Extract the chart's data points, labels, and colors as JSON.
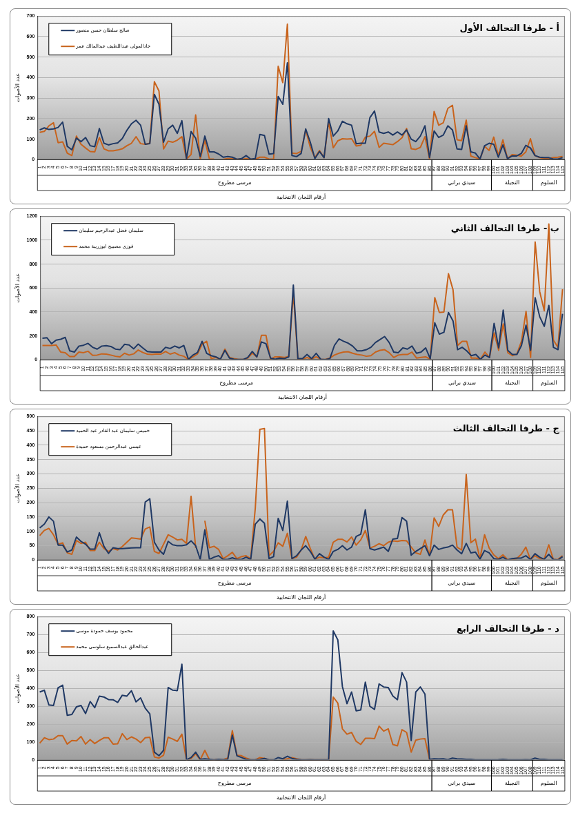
{
  "chart_data": [
    {
      "type": "line",
      "title": "أ - طرفا التحالف الأول",
      "xlabel": "أرقام اللجان الانتخابية",
      "ylabel": "عدد الأصوات",
      "legend": "top left",
      "grid": "y",
      "ylim": [
        0,
        700
      ],
      "yticks": [
        0,
        100,
        200,
        300,
        400,
        500,
        600,
        700
      ],
      "categories": [
        "1",
        "2",
        "3",
        "4",
        "5",
        "6",
        "7",
        "8",
        "9",
        "10",
        "11",
        "12",
        "13",
        "14",
        "15",
        "16",
        "17",
        "18",
        "19",
        "20",
        "21",
        "22",
        "23",
        "24",
        "25",
        "26",
        "27",
        "28",
        "29",
        "30",
        "31",
        "32",
        "33",
        "34",
        "35",
        "36",
        "37",
        "38",
        "39",
        "40",
        "41",
        "42",
        "43",
        "44",
        "45",
        "46",
        "47",
        "48",
        "49",
        "50",
        "51",
        "52",
        "53",
        "54",
        "55",
        "56",
        "57",
        "58",
        "59",
        "60",
        "61",
        "62",
        "63",
        "64",
        "65",
        "66",
        "67",
        "68",
        "69",
        "70",
        "71",
        "72",
        "73",
        "74",
        "75",
        "76",
        "77",
        "78",
        "79",
        "80",
        "81",
        "82",
        "83",
        "84",
        "85",
        "86",
        "87",
        "88",
        "89",
        "90",
        "91",
        "92",
        "93",
        "94",
        "95",
        "96",
        "97",
        "98",
        "99",
        "100",
        "101",
        "102",
        "103",
        "104",
        "105",
        "106",
        "107",
        "108",
        "109",
        "110",
        "111",
        "112",
        "113",
        "114",
        "115"
      ],
      "annotations": [
        "مرسى مطروح",
        "سيدي براني",
        "النجيلة",
        "السلوم"
      ],
      "series": [
        {
          "name": "صالح سلطان حسن منصور",
          "color": "#1f3864",
          "values": [
            145,
            155,
            147,
            150,
            157,
            183,
            65,
            48,
            105,
            88,
            108,
            68,
            63,
            152,
            80,
            72,
            78,
            82,
            103,
            143,
            175,
            192,
            168,
            75,
            78,
            318,
            270,
            85,
            150,
            168,
            128,
            190,
            5,
            137,
            105,
            15,
            115,
            38,
            38,
            28,
            12,
            15,
            12,
            2,
            5,
            20,
            3,
            5,
            123,
            118,
            27,
            30,
            308,
            270,
            472,
            20,
            15,
            30,
            150,
            85,
            5,
            40,
            10,
            200,
            115,
            140,
            187,
            175,
            168,
            78,
            80,
            80,
            205,
            237,
            135,
            128,
            135,
            120,
            135,
            120,
            145,
            100,
            88,
            115,
            165,
            10,
            140,
            108,
            120,
            165,
            145,
            52,
            50,
            165,
            38,
            32,
            3,
            68,
            80,
            75,
            12,
            72,
            5,
            18,
            18,
            30,
            70,
            57,
            20,
            12,
            10,
            10,
            3,
            3,
            10
          ]
        },
        {
          "name": "جادالمولى عبداللطيف عبدالمالك عمر",
          "color": "#c8631c",
          "values": [
            133,
            138,
            165,
            180,
            83,
            87,
            32,
            20,
            115,
            75,
            57,
            40,
            38,
            108,
            53,
            43,
            43,
            47,
            53,
            68,
            80,
            112,
            78,
            75,
            80,
            380,
            335,
            52,
            90,
            85,
            95,
            112,
            3,
            25,
            218,
            3,
            95,
            3,
            3,
            null,
            2,
            5,
            5,
            2,
            2,
            5,
            3,
            2,
            12,
            12,
            3,
            3,
            455,
            375,
            660,
            32,
            30,
            40,
            145,
            60,
            10,
            45,
            10,
            185,
            58,
            92,
            102,
            100,
            102,
            67,
            70,
            110,
            115,
            138,
            60,
            80,
            77,
            73,
            88,
            107,
            152,
            53,
            50,
            60,
            112,
            3,
            235,
            168,
            180,
            250,
            265,
            97,
            93,
            193,
            18,
            10,
            3,
            65,
            45,
            110,
            20,
            97,
            5,
            25,
            22,
            17,
            38,
            102,
            20,
            10,
            5,
            5,
            10,
            12,
            15
          ]
        }
      ]
    },
    {
      "type": "line",
      "title": "ب - طرفا التحالف الثاني",
      "xlabel": "أرقام اللجان الانتخابية",
      "ylabel": "عدد الأصوات",
      "legend": "top left",
      "grid": "y",
      "ylim": [
        0,
        1200
      ],
      "yticks": [
        0,
        200,
        400,
        600,
        800,
        1000,
        1200
      ],
      "categories": [
        "1",
        "2",
        "3",
        "4",
        "5",
        "6",
        "7",
        "8",
        "9",
        "10",
        "11",
        "12",
        "13",
        "14",
        "15",
        "16",
        "17",
        "18",
        "19",
        "20",
        "21",
        "22",
        "23",
        "24",
        "25",
        "26",
        "27",
        "28",
        "29",
        "30",
        "31",
        "32",
        "33",
        "34",
        "35",
        "36",
        "37",
        "38",
        "39",
        "40",
        "41",
        "42",
        "43",
        "44",
        "45",
        "46",
        "47",
        "48",
        "49",
        "50",
        "51",
        "52",
        "53",
        "54",
        "55",
        "56",
        "57",
        "58",
        "59",
        "60",
        "61",
        "62",
        "63",
        "64",
        "65",
        "66",
        "67",
        "68",
        "69",
        "70",
        "71",
        "72",
        "73",
        "74",
        "75",
        "76",
        "77",
        "78",
        "79",
        "80",
        "81",
        "82",
        "83",
        "84",
        "85",
        "86",
        "87",
        "88",
        "89",
        "90",
        "91",
        "92",
        "93",
        "94",
        "95",
        "96",
        "97",
        "98",
        "99",
        "100",
        "101",
        "102",
        "103",
        "104",
        "105",
        "106",
        "107",
        "108",
        "109",
        "110",
        "111",
        "112",
        "113",
        "114",
        "115"
      ],
      "annotations": [
        "مرسى مطروح",
        "سيدي براني",
        "النجيلة",
        "السلوم"
      ],
      "series": [
        {
          "name": "سليمان فضل عبدالرحيم سليمان",
          "color": "#1f3864",
          "values": [
            180,
            185,
            135,
            165,
            172,
            188,
            75,
            65,
            115,
            122,
            138,
            105,
            90,
            115,
            118,
            112,
            90,
            85,
            130,
            125,
            92,
            132,
            100,
            70,
            65,
            65,
            65,
            105,
            95,
            115,
            100,
            120,
            5,
            40,
            62,
            155,
            55,
            35,
            25,
            5,
            80,
            15,
            5,
            3,
            3,
            20,
            70,
            25,
            150,
            135,
            15,
            5,
            15,
            10,
            25,
            625,
            10,
            10,
            45,
            10,
            55,
            5,
            2,
            10,
            120,
            175,
            155,
            140,
            115,
            75,
            75,
            85,
            105,
            145,
            170,
            195,
            145,
            65,
            60,
            100,
            90,
            115,
            55,
            65,
            100,
            10,
            310,
            215,
            230,
            395,
            325,
            85,
            105,
            75,
            35,
            45,
            5,
            40,
            20,
            305,
            100,
            415,
            80,
            45,
            45,
            120,
            290,
            80,
            520,
            360,
            280,
            455,
            105,
            85,
            385
          ]
        },
        {
          "name": "فوزى مصيبح ابوزريبة محمد",
          "color": "#c8631c",
          "values": [
            120,
            120,
            120,
            125,
            65,
            60,
            28,
            28,
            65,
            60,
            72,
            38,
            40,
            50,
            48,
            40,
            30,
            25,
            55,
            40,
            50,
            82,
            62,
            48,
            45,
            50,
            48,
            70,
            48,
            60,
            40,
            30,
            3,
            25,
            50,
            130,
            155,
            10,
            20,
            5,
            90,
            20,
            10,
            3,
            3,
            15,
            55,
            25,
            205,
            205,
            5,
            25,
            25,
            20,
            30,
            555,
            5,
            5,
            20,
            5,
            25,
            5,
            3,
            15,
            40,
            55,
            65,
            68,
            55,
            45,
            40,
            30,
            35,
            65,
            80,
            85,
            60,
            20,
            40,
            45,
            45,
            65,
            15,
            20,
            25,
            5,
            520,
            395,
            400,
            720,
            585,
            120,
            155,
            155,
            15,
            15,
            5,
            65,
            20,
            225,
            80,
            300,
            60,
            35,
            50,
            155,
            405,
            20,
            985,
            570,
            410,
            1135,
            165,
            105,
            590
          ]
        }
      ]
    },
    {
      "type": "line",
      "title": "ج - طرفا التحالف الثالث",
      "xlabel": "أرقام اللجان الانتخابية",
      "ylabel": "عدد الأصوات",
      "legend": "top left",
      "grid": "y",
      "ylim": [
        0,
        500
      ],
      "yticks": [
        0,
        50,
        100,
        150,
        200,
        250,
        300,
        350,
        400,
        450,
        500
      ],
      "categories": [
        "1",
        "2",
        "3",
        "4",
        "5",
        "6",
        "7",
        "8",
        "9",
        "10",
        "11",
        "12",
        "13",
        "14",
        "15",
        "16",
        "17",
        "18",
        "19",
        "20",
        "21",
        "22",
        "23",
        "24",
        "25",
        "26",
        "27",
        "28",
        "29",
        "30",
        "31",
        "32",
        "33",
        "34",
        "35",
        "36",
        "37",
        "38",
        "39",
        "40",
        "41",
        "42",
        "43",
        "44",
        "45",
        "46",
        "47",
        "48",
        "49",
        "50",
        "51",
        "52",
        "53",
        "54",
        "55",
        "56",
        "57",
        "58",
        "59",
        "60",
        "61",
        "62",
        "63",
        "64",
        "65",
        "66",
        "67",
        "68",
        "69",
        "70",
        "71",
        "72",
        "73",
        "74",
        "75",
        "76",
        "77",
        "78",
        "79",
        "80",
        "81",
        "82",
        "83",
        "84",
        "85",
        "86",
        "87",
        "88",
        "89",
        "90",
        "91",
        "92",
        "93",
        "94",
        "95",
        "96",
        "97",
        "98",
        "99",
        "100",
        "101",
        "102",
        "103",
        "104",
        "105",
        "106",
        "107",
        "108",
        "109",
        "110",
        "111",
        "112",
        "113",
        "114",
        "115"
      ],
      "annotations": [
        "مرسى مطروح",
        "سيدي براني",
        "النجيلة",
        "السلوم"
      ],
      "series": [
        {
          "name": "خميس سليمان عبد القادر عبد الحميد",
          "color": "#1f3864",
          "values": [
            112,
            125,
            150,
            135,
            52,
            52,
            28,
            35,
            80,
            65,
            55,
            38,
            38,
            95,
            48,
            23,
            43,
            40,
            40,
            41,
            42,
            43,
            43,
            202,
            213,
            62,
            35,
            20,
            65,
            53,
            50,
            50,
            53,
            67,
            50,
            2,
            105,
            2,
            10,
            15,
            2,
            2,
            8,
            2,
            2,
            10,
            2,
            125,
            143,
            128,
            5,
            12,
            145,
            103,
            205,
            5,
            15,
            35,
            50,
            30,
            3,
            22,
            10,
            2,
            30,
            37,
            50,
            35,
            45,
            82,
            90,
            175,
            40,
            35,
            40,
            45,
            30,
            73,
            75,
            148,
            135,
            17,
            30,
            40,
            50,
            15,
            52,
            37,
            42,
            45,
            52,
            35,
            22,
            58,
            25,
            28,
            3,
            33,
            25,
            5,
            2,
            10,
            0,
            5,
            7,
            7,
            15,
            2,
            22,
            10,
            3,
            20,
            2,
            0,
            12
          ]
        },
        {
          "name": "عيسى عبدالرحمن مسعود حميدة",
          "color": "#c8631c",
          "values": [
            85,
            103,
            110,
            88,
            55,
            60,
            25,
            20,
            68,
            58,
            62,
            33,
            33,
            62,
            40,
            30,
            40,
            35,
            47,
            62,
            77,
            75,
            73,
            108,
            115,
            30,
            23,
            55,
            88,
            80,
            70,
            72,
            58,
            222,
            42,
            null,
            137,
            43,
            48,
            37,
            5,
            15,
            27,
            5,
            12,
            15,
            5,
            180,
            455,
            458,
            15,
            30,
            60,
            48,
            93,
            5,
            10,
            35,
            82,
            40,
            3,
            10,
            8,
            10,
            62,
            72,
            72,
            63,
            80,
            52,
            70,
            103,
            42,
            48,
            57,
            50,
            62,
            67,
            65,
            68,
            67,
            45,
            25,
            20,
            70,
            15,
            147,
            117,
            157,
            175,
            175,
            45,
            35,
            298,
            60,
            73,
            5,
            88,
            42,
            18,
            5,
            18,
            2,
            2,
            5,
            20,
            45,
            2,
            15,
            5,
            3,
            53,
            2,
            2,
            15
          ]
        }
      ]
    },
    {
      "type": "line",
      "title": "د - طرفا التحالف الرابع",
      "xlabel": "أرقام اللجان الانتخابية",
      "ylabel": "عدد الأصوات",
      "legend": "top left",
      "grid": "y",
      "ylim": [
        0,
        800
      ],
      "yticks": [
        0,
        100,
        200,
        300,
        400,
        500,
        600,
        700,
        800
      ],
      "categories": [
        "1",
        "2",
        "3",
        "4",
        "5",
        "6",
        "7",
        "8",
        "9",
        "10",
        "11",
        "12",
        "13",
        "14",
        "15",
        "16",
        "17",
        "18",
        "19",
        "20",
        "21",
        "22",
        "23",
        "24",
        "25",
        "26",
        "27",
        "28",
        "29",
        "30",
        "31",
        "32",
        "33",
        "34",
        "35",
        "36",
        "37",
        "38",
        "39",
        "40",
        "41",
        "42",
        "43",
        "44",
        "45",
        "46",
        "47",
        "48",
        "49",
        "50",
        "51",
        "52",
        "53",
        "54",
        "55",
        "56",
        "57",
        "58",
        "59",
        "60",
        "61",
        "62",
        "63",
        "64",
        "65",
        "66",
        "67",
        "68",
        "69",
        "70",
        "71",
        "72",
        "73",
        "74",
        "75",
        "76",
        "77",
        "78",
        "79",
        "80",
        "81",
        "82",
        "83",
        "84",
        "85",
        "86",
        "87",
        "88",
        "89",
        "90",
        "91",
        "92",
        "93",
        "94",
        "95",
        "96",
        "97",
        "98",
        "99",
        "100",
        "101",
        "102",
        "103",
        "104",
        "105",
        "106",
        "107",
        "108",
        "109",
        "110",
        "111",
        "112",
        "113",
        "114",
        "115"
      ],
      "annotations": [
        "مرسى مطروح",
        "سيدي براني",
        "النجيلة",
        "السلوم"
      ],
      "series": [
        {
          "name": "محمود يوسف حمودة موسى",
          "color": "#1f3864",
          "values": [
            380,
            390,
            308,
            305,
            403,
            418,
            250,
            255,
            297,
            305,
            260,
            327,
            293,
            357,
            352,
            338,
            337,
            322,
            362,
            357,
            387,
            325,
            347,
            290,
            258,
            45,
            25,
            55,
            405,
            390,
            388,
            535,
            3,
            15,
            45,
            5,
            8,
            5,
            2,
            5,
            3,
            5,
            140,
            25,
            15,
            5,
            2,
            3,
            5,
            10,
            2,
            2,
            15,
            8,
            22,
            10,
            5,
            3,
            2,
            3,
            2,
            2,
            2,
            2,
            720,
            670,
            410,
            315,
            380,
            275,
            280,
            435,
            300,
            283,
            425,
            408,
            405,
            358,
            337,
            488,
            435,
            110,
            380,
            408,
            368,
            5,
            8,
            7,
            8,
            3,
            12,
            8,
            7,
            5,
            5,
            2,
            2,
            2,
            2,
            2,
            3,
            5,
            3,
            2,
            2,
            2,
            3,
            2,
            12,
            5,
            5,
            2,
            2,
            2,
            2
          ]
        },
        {
          "name": "عبدالخالق عبدالسميع سلوسى محمد",
          "color": "#c8631c",
          "values": [
            95,
            125,
            115,
            118,
            137,
            137,
            90,
            110,
            108,
            132,
            90,
            115,
            93,
            110,
            125,
            125,
            90,
            92,
            148,
            115,
            130,
            118,
            98,
            125,
            128,
            18,
            12,
            28,
            128,
            118,
            105,
            145,
            2,
            10,
            35,
            3,
            55,
            3,
            2,
            5,
            3,
            12,
            165,
            28,
            25,
            12,
            3,
            2,
            15,
            10,
            2,
            2,
            null,
            3,
            8,
            15,
            8,
            3,
            2,
            3,
            2,
            2,
            2,
            2,
            352,
            318,
            175,
            145,
            155,
            105,
            88,
            122,
            122,
            120,
            190,
            162,
            175,
            88,
            80,
            170,
            155,
            45,
            112,
            118,
            120,
            3,
            3,
            null,
            null,
            null,
            null,
            null,
            null,
            null,
            null,
            null,
            null,
            null,
            null,
            null,
            null,
            null,
            null,
            null,
            null,
            null,
            null,
            null,
            null,
            null,
            null,
            null,
            null,
            null,
            null
          ]
        }
      ]
    }
  ]
}
